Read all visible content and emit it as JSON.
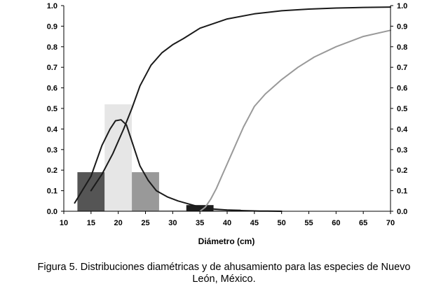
{
  "chart_data": {
    "type": "bar",
    "xlabel": "Diámetro (cm)",
    "xlim": [
      10,
      70
    ],
    "ylim": [
      0,
      1.0
    ],
    "y2lim": [
      0,
      1.0
    ],
    "x_ticks": [
      "10",
      "15",
      "20",
      "25",
      "30",
      "35",
      "40",
      "45",
      "50",
      "55",
      "60",
      "65",
      "70"
    ],
    "y_ticks": [
      "0.0",
      "0.1",
      "0.2",
      "0.3",
      "0.4",
      "0.5",
      "0.6",
      "0.7",
      "0.8",
      "0.9",
      "1.0"
    ],
    "y2_ticks": [
      "0.0",
      "0.1",
      "0.2",
      "0.3",
      "0.4",
      "0.5",
      "0.6",
      "0.7",
      "0.8",
      "0.9",
      "1.0"
    ],
    "grid": false,
    "bars": [
      {
        "x0": 12.5,
        "x1": 17.5,
        "value": 0.19,
        "color": "#555555"
      },
      {
        "x0": 17.5,
        "x1": 22.5,
        "value": 0.52,
        "color": "#e6e6e6"
      },
      {
        "x0": 22.5,
        "x1": 27.5,
        "value": 0.19,
        "color": "#999999"
      },
      {
        "x0": 27.5,
        "x1": 32.5,
        "value": 0.005,
        "color": "#c8c8c8"
      },
      {
        "x0": 32.5,
        "x1": 37.5,
        "value": 0.03,
        "color": "#1e1e1e"
      },
      {
        "x0": 37.5,
        "x1": 42.5,
        "value": 0.01,
        "color": "#bbbbbb"
      }
    ],
    "series": [
      {
        "type": "line",
        "color": "#1a1a1a",
        "x": [
          12,
          15,
          17,
          18.5,
          19.5,
          20.5,
          21.5,
          22.5,
          24,
          25.5,
          27,
          29,
          31,
          33,
          35,
          37,
          40,
          43,
          46,
          50
        ],
        "y": [
          0.04,
          0.17,
          0.32,
          0.4,
          0.44,
          0.445,
          0.42,
          0.34,
          0.22,
          0.15,
          0.1,
          0.07,
          0.05,
          0.035,
          0.02,
          0.012,
          0.006,
          0.003,
          0.001,
          0.0
        ]
      },
      {
        "type": "line",
        "color": "#1a1a1a",
        "x": [
          15,
          17,
          19,
          21,
          22.5,
          24,
          26,
          28,
          30,
          32,
          35,
          40,
          45,
          50,
          55,
          60,
          65,
          70
        ],
        "y": [
          0.1,
          0.18,
          0.28,
          0.4,
          0.5,
          0.61,
          0.71,
          0.77,
          0.81,
          0.84,
          0.89,
          0.935,
          0.96,
          0.975,
          0.983,
          0.988,
          0.991,
          0.993
        ]
      },
      {
        "type": "line",
        "color": "#999999",
        "x": [
          35,
          36,
          37,
          38,
          39,
          40,
          41,
          42,
          43,
          44,
          45,
          47,
          50,
          53,
          56,
          60,
          65,
          70
        ],
        "y": [
          0.0,
          0.02,
          0.06,
          0.11,
          0.17,
          0.23,
          0.29,
          0.35,
          0.41,
          0.46,
          0.51,
          0.57,
          0.64,
          0.7,
          0.75,
          0.8,
          0.85,
          0.88
        ]
      }
    ]
  },
  "caption": {
    "line1": "Figura 5. Distribuciones diamétricas y de ahusamiento para las especies de Nuevo",
    "line2": "León, México."
  }
}
